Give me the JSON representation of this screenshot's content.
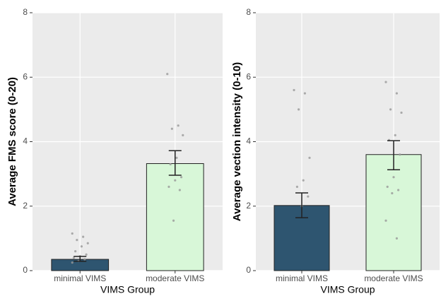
{
  "chart_data": [
    {
      "type": "bar",
      "y_label": "Average FMS score (0-20)",
      "x_label": "VIMS Group",
      "categories": [
        "minimal VIMS",
        "moderate VIMS"
      ],
      "values": [
        0.35,
        3.32
      ],
      "ci": [
        [
          0.29,
          0.44
        ],
        [
          2.96,
          3.72
        ]
      ],
      "colors": [
        "#2e5570",
        "#d8f7d8"
      ],
      "points": [
        [
          1.15,
          1.05,
          0.95,
          0.85,
          0.75,
          0.6,
          0.5,
          0.45,
          0.4,
          0.35,
          0.3,
          0.25
        ],
        [
          6.1,
          4.5,
          4.4,
          4.2,
          3.5,
          3.3,
          2.9,
          2.8,
          2.6,
          2.5,
          1.55
        ]
      ],
      "ylim": [
        0,
        8
      ],
      "yticks": [
        0,
        2,
        4,
        6,
        8
      ],
      "grid": true
    },
    {
      "type": "bar",
      "y_label": "Average vection intensity (0-10)",
      "x_label": "VIMS Group",
      "categories": [
        "minimal VIMS",
        "moderate VIMS"
      ],
      "values": [
        2.02,
        3.6
      ],
      "ci": [
        [
          1.64,
          2.41
        ],
        [
          3.13,
          4.03
        ]
      ],
      "colors": [
        "#2e5570",
        "#d8f7d8"
      ],
      "points": [
        [
          5.6,
          5.5,
          5.0,
          3.5,
          2.8,
          2.6,
          2.3,
          2.0
        ],
        [
          5.85,
          5.5,
          5.0,
          4.9,
          4.2,
          4.05,
          3.6,
          2.9,
          2.6,
          2.5,
          2.4,
          1.55,
          1.0
        ]
      ],
      "ylim": [
        0,
        8
      ],
      "yticks": [
        0,
        2,
        4,
        6,
        8
      ],
      "grid": true
    }
  ]
}
